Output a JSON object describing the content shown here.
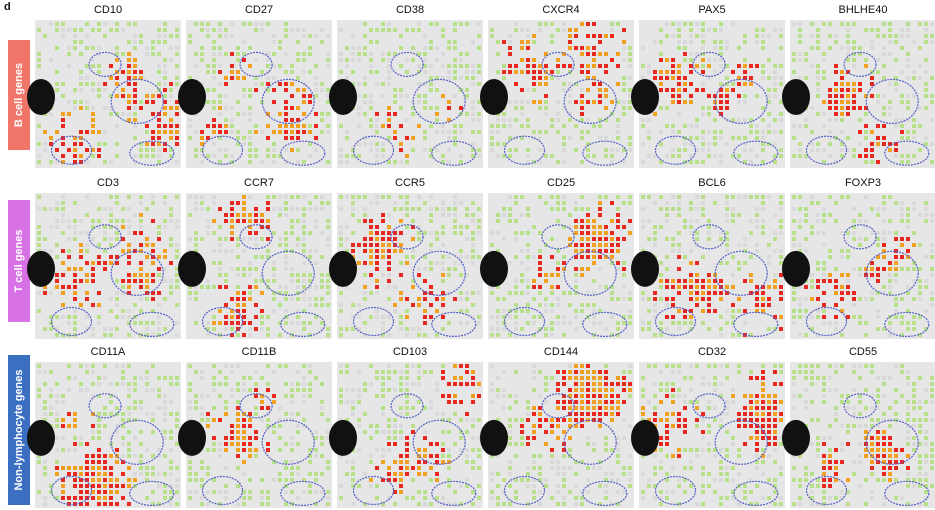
{
  "panel_label": "d",
  "rows": [
    {
      "label": "B cell genes",
      "genes": [
        "CD10",
        "CD27",
        "CD38",
        "CXCR4",
        "PAX5",
        "BHLHE40"
      ]
    },
    {
      "label": "T cell genes",
      "genes": [
        "CD3",
        "CCR7",
        "CCR5",
        "CD25",
        "BCL6",
        "FOXP3"
      ]
    },
    {
      "label": "Non-lymphocyte genes",
      "genes": [
        "CD11A",
        "CD11B",
        "CD103",
        "CD144",
        "CD32",
        "CD55"
      ]
    }
  ]
}
